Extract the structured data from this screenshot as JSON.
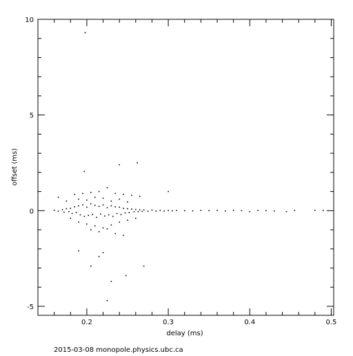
{
  "chart_data": {
    "type": "scatter",
    "color": "#000000",
    "x_label": "delay (ms)",
    "y_label": "offset (ms)",
    "footer": "2015-03-08  monopole.physics.ubc.ca",
    "xlim": [
      0.14,
      0.503
    ],
    "ylim": [
      -5.47,
      10
    ],
    "xticks": [
      0.2,
      0.3,
      0.4,
      0.5
    ],
    "yticks": [
      -5,
      0,
      5,
      10
    ],
    "xminor_ticks": [
      0.16,
      0.18,
      0.22,
      0.24,
      0.26,
      0.28,
      0.32,
      0.34,
      0.36,
      0.38,
      0.42,
      0.44,
      0.46,
      0.48
    ],
    "yminor_ticks": [
      -4,
      -3,
      -2,
      -1,
      1,
      2,
      3,
      4,
      6,
      7,
      8,
      9
    ],
    "x": [
      0.16,
      0.165,
      0.17,
      0.172,
      0.175,
      0.178,
      0.18,
      0.182,
      0.185,
      0.187,
      0.19,
      0.192,
      0.195,
      0.197,
      0.2,
      0.202,
      0.205,
      0.207,
      0.21,
      0.212,
      0.215,
      0.217,
      0.22,
      0.222,
      0.225,
      0.227,
      0.23,
      0.232,
      0.235,
      0.237,
      0.24,
      0.242,
      0.245,
      0.247,
      0.25,
      0.252,
      0.255,
      0.258,
      0.26,
      0.263,
      0.265,
      0.268,
      0.27,
      0.275,
      0.28,
      0.285,
      0.29,
      0.295,
      0.3,
      0.305,
      0.31,
      0.32,
      0.33,
      0.34,
      0.35,
      0.36,
      0.37,
      0.38,
      0.39,
      0.4,
      0.41,
      0.42,
      0.43,
      0.445,
      0.455,
      0.48,
      0.49,
      0.185,
      0.195,
      0.205,
      0.215,
      0.225,
      0.235,
      0.245,
      0.255,
      0.265,
      0.19,
      0.2,
      0.21,
      0.22,
      0.23,
      0.24,
      0.25,
      0.19,
      0.2,
      0.21,
      0.22,
      0.23,
      0.24,
      0.25,
      0.26,
      0.205,
      0.215,
      0.225,
      0.235,
      0.245,
      0.18,
      0.175,
      0.165,
      0.198,
      0.197,
      0.24,
      0.262,
      0.3,
      0.19,
      0.205,
      0.225,
      0.23,
      0.248,
      0.27,
      0.22,
      0.215
    ],
    "y": [
      0.02,
      -0.03,
      0.05,
      -0.08,
      0.1,
      -0.05,
      0.12,
      -0.15,
      0.2,
      -0.1,
      0.25,
      -0.22,
      0.3,
      -0.3,
      0.18,
      -0.25,
      0.35,
      -0.2,
      0.28,
      -0.35,
      0.22,
      -0.18,
      0.3,
      -0.28,
      0.15,
      -0.22,
      0.25,
      -0.3,
      0.2,
      -0.15,
      0.18,
      -0.2,
      0.12,
      -0.12,
      0.1,
      -0.1,
      0.08,
      -0.06,
      0.06,
      -0.05,
      0.05,
      -0.04,
      0.04,
      -0.03,
      0.03,
      -0.02,
      0.02,
      -0.02,
      0.01,
      -0.01,
      0.01,
      0,
      -0.01,
      0.01,
      0,
      0.01,
      -0.02,
      0.02,
      0,
      -0.05,
      0.01,
      0,
      -0.02,
      -0.05,
      0.01,
      0.02,
      0.01,
      0.85,
      0.9,
      0.95,
      1.0,
      1.2,
      0.9,
      0.85,
      0.8,
      0.75,
      0.6,
      0.55,
      0.7,
      0.65,
      0.5,
      0.6,
      0.45,
      -0.6,
      -0.7,
      -0.8,
      -0.9,
      -0.75,
      -0.6,
      -0.5,
      -0.4,
      -1.0,
      -1.1,
      -0.95,
      -1.2,
      -1.3,
      -0.4,
      0.5,
      0.7,
      9.3,
      2.05,
      2.4,
      2.5,
      1.0,
      -2.1,
      -2.9,
      -4.7,
      -3.7,
      -3.4,
      -2.9,
      -2.2,
      -2.4
    ]
  }
}
